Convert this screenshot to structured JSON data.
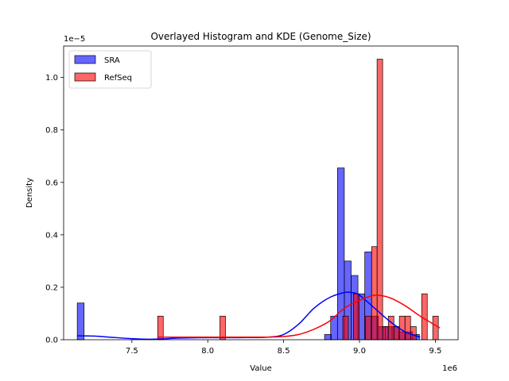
{
  "chart_data": {
    "type": "bar",
    "title": "Overlayed Histogram and KDE (Genome_Size)",
    "xlabel": "Value",
    "ylabel": "Density",
    "x_offset_text": "1e6",
    "y_offset_text": "1e−5",
    "xlim": [
      7.05,
      9.65
    ],
    "ylim": [
      0,
      1.12
    ],
    "x_ticks": [
      7.5,
      8.0,
      8.5,
      9.0,
      9.5
    ],
    "x_tick_labels": [
      "7.5",
      "8.0",
      "8.5",
      "9.0",
      "9.5"
    ],
    "y_ticks": [
      0,
      0.2,
      0.4,
      0.6,
      0.8,
      1.0
    ],
    "y_tick_labels": [
      "0.0",
      "0.2",
      "0.4",
      "0.6",
      "0.8",
      "1.0"
    ],
    "legend_position": "top-left",
    "grid": false,
    "series": [
      {
        "name": "SRA",
        "color": "#0000ff",
        "bar_alpha": 0.6,
        "bin_width": 0.0449,
        "bins": [
          {
            "x0": 7.14,
            "density": 0.14
          },
          {
            "x0": 8.77,
            "density": 0.02
          },
          {
            "x0": 8.81,
            "density": 0.09
          },
          {
            "x0": 8.855,
            "density": 0.655
          },
          {
            "x0": 8.9,
            "density": 0.3
          },
          {
            "x0": 8.945,
            "density": 0.245
          },
          {
            "x0": 8.99,
            "density": 0.175
          },
          {
            "x0": 9.035,
            "density": 0.335
          },
          {
            "x0": 9.08,
            "density": 0.09
          },
          {
            "x0": 9.125,
            "density": 0.05
          },
          {
            "x0": 9.17,
            "density": 0.05
          },
          {
            "x0": 9.215,
            "density": 0.05
          },
          {
            "x0": 9.26,
            "density": 0.03
          },
          {
            "x0": 9.305,
            "density": 0.03
          },
          {
            "x0": 9.35,
            "density": 0.02
          }
        ],
        "kde": {
          "x": [
            7.14,
            7.25,
            7.35,
            7.5,
            7.6,
            7.7,
            7.8,
            8.0,
            8.2,
            8.4,
            8.5,
            8.6,
            8.7,
            8.8,
            8.9,
            8.95,
            9.0,
            9.1,
            9.2,
            9.3,
            9.4
          ],
          "y": [
            0.015,
            0.014,
            0.01,
            0.004,
            0.002,
            0.003,
            0.006,
            0.008,
            0.008,
            0.01,
            0.02,
            0.06,
            0.12,
            0.16,
            0.18,
            0.18,
            0.17,
            0.12,
            0.07,
            0.03,
            0.01
          ]
        }
      },
      {
        "name": "RefSeq",
        "color": "#ff0000",
        "bar_alpha": 0.6,
        "bin_width": 0.0367,
        "bins": [
          {
            "x0": 7.67,
            "density": 0.09
          },
          {
            "x0": 8.08,
            "density": 0.09
          },
          {
            "x0": 8.89,
            "density": 0.09
          },
          {
            "x0": 8.96,
            "density": 0.175
          },
          {
            "x0": 9.04,
            "density": 0.09
          },
          {
            "x0": 9.08,
            "density": 0.355
          },
          {
            "x0": 9.116,
            "density": 1.07
          },
          {
            "x0": 9.153,
            "density": 0.05
          },
          {
            "x0": 9.19,
            "density": 0.09
          },
          {
            "x0": 9.227,
            "density": 0.05
          },
          {
            "x0": 9.263,
            "density": 0.09
          },
          {
            "x0": 9.3,
            "density": 0.09
          },
          {
            "x0": 9.337,
            "density": 0.05
          },
          {
            "x0": 9.41,
            "density": 0.175
          },
          {
            "x0": 9.483,
            "density": 0.09
          }
        ],
        "kde": {
          "x": [
            7.67,
            7.8,
            8.0,
            8.2,
            8.4,
            8.5,
            8.6,
            8.7,
            8.8,
            8.9,
            9.0,
            9.1,
            9.2,
            9.3,
            9.4,
            9.53
          ],
          "y": [
            0.01,
            0.01,
            0.01,
            0.01,
            0.01,
            0.012,
            0.02,
            0.04,
            0.07,
            0.12,
            0.15,
            0.17,
            0.16,
            0.13,
            0.09,
            0.045
          ]
        }
      }
    ]
  }
}
